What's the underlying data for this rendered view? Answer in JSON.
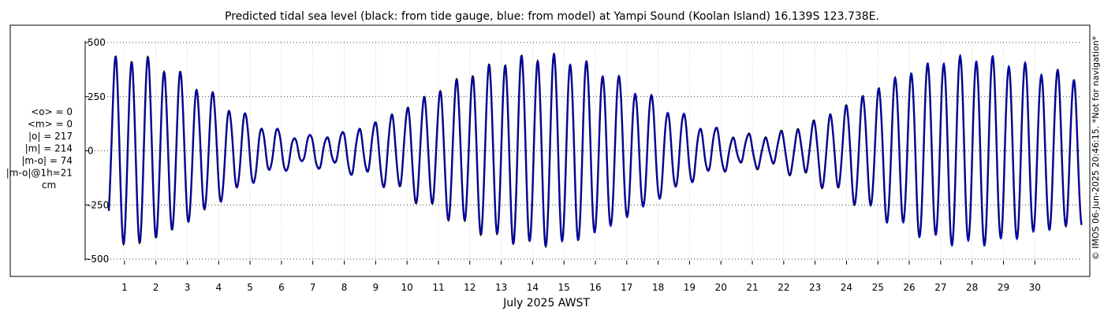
{
  "chart_data": {
    "type": "line",
    "title": "Predicted tidal sea level (black: from tide gauge, blue: from model) at Yampi Sound (Koolan Island) 16.139S 123.738E.",
    "xlabel": "July 2025 AWST",
    "ylabel": "",
    "xlim": [
      0,
      31
    ],
    "ylim": [
      -580,
      580
    ],
    "x_ticks": [
      "1",
      "2",
      "3",
      "4",
      "5",
      "6",
      "7",
      "8",
      "9",
      "10",
      "11",
      "12",
      "13",
      "14",
      "15",
      "16",
      "17",
      "18",
      "19",
      "20",
      "21",
      "22",
      "23",
      "24",
      "25",
      "26",
      "27",
      "28",
      "29",
      "30"
    ],
    "y_ticks": [
      "-500",
      "-250",
      "0",
      "250",
      "500"
    ],
    "grid": true,
    "stats": [
      "<o> = 0",
      "<m> = 0",
      "|o| = 217",
      "|m| = 214",
      "|m-o| = 74",
      "|m-o|@1h=21",
      "cm"
    ],
    "copyright": "© IMOS 06-Jun-2025 20:46:15. *Not for navigation*",
    "tidal_model": {
      "period_hours": 12.42,
      "spring_days": [
        0.3,
        13.9,
        27.5
      ],
      "neap_days": [
        6.4,
        20.5
      ],
      "max_amplitude_cm": 430,
      "min_amplitude_cm": 65,
      "diurnal_inequality_cm": 20
    },
    "series": [
      {
        "name": "tide gauge",
        "color": "#000000"
      },
      {
        "name": "model",
        "color": "#0000cc"
      }
    ]
  }
}
